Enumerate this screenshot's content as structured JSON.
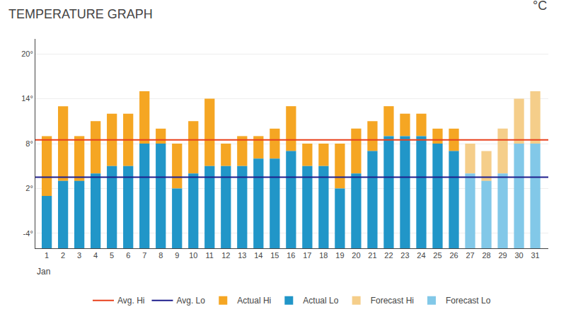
{
  "chart_data": {
    "type": "bar",
    "title": "TEMPERATURE GRAPH",
    "xlabel": "Jan",
    "ylabel": "°C",
    "x": [
      1,
      2,
      3,
      4,
      5,
      6,
      7,
      8,
      9,
      10,
      11,
      12,
      13,
      14,
      15,
      16,
      17,
      18,
      19,
      20,
      21,
      22,
      23,
      24,
      25,
      26,
      27,
      28,
      29,
      30,
      31
    ],
    "xlim": [
      0.3,
      31.8
    ],
    "xticks": [
      1,
      2,
      3,
      4,
      5,
      6,
      7,
      8,
      9,
      10,
      11,
      12,
      13,
      14,
      15,
      16,
      17,
      18,
      19,
      20,
      21,
      22,
      23,
      24,
      25,
      26,
      27,
      28,
      29,
      30,
      31
    ],
    "ylim": [
      -6,
      22
    ],
    "yticks": [
      {
        "value": -4,
        "label": "-4°"
      },
      {
        "value": 2,
        "label": "2°"
      },
      {
        "value": 8,
        "label": "8°"
      },
      {
        "value": 14,
        "label": "14°"
      },
      {
        "value": 20,
        "label": "20°"
      }
    ],
    "grid": "y",
    "legend": "bottom",
    "base": -6,
    "series": [
      {
        "name": "Avg. Hi",
        "type": "line",
        "color": "#E8401C",
        "value": 8.5
      },
      {
        "name": "Avg. Lo",
        "type": "line",
        "color": "#1E1E8C",
        "value": 3.5
      },
      {
        "name": "Actual Hi",
        "type": "bar",
        "color": "#F5A623",
        "base": "Actual Lo",
        "values": [
          9,
          13,
          9,
          11,
          12,
          12,
          15,
          10,
          8,
          11,
          14,
          8,
          9,
          9,
          10,
          13,
          8,
          8,
          8,
          10,
          11,
          13,
          12,
          12,
          10,
          10,
          null,
          null,
          null,
          null,
          null
        ]
      },
      {
        "name": "Actual Lo",
        "type": "bar",
        "color": "#2196C8",
        "values": [
          1,
          3,
          3,
          4,
          5,
          5,
          8,
          8,
          2,
          4,
          5,
          5,
          5,
          6,
          6,
          7,
          5,
          5,
          2,
          4,
          7,
          9,
          9,
          9,
          8,
          7,
          null,
          null,
          null,
          null,
          null
        ]
      },
      {
        "name": "Forecast Hi",
        "type": "bar",
        "color": "#F5CE8A",
        "base": "Forecast Lo",
        "values": [
          null,
          null,
          null,
          null,
          null,
          null,
          null,
          null,
          null,
          null,
          null,
          null,
          null,
          null,
          null,
          null,
          null,
          null,
          null,
          null,
          null,
          null,
          null,
          null,
          null,
          null,
          8,
          7,
          10,
          14,
          15
        ]
      },
      {
        "name": "Forecast Lo",
        "type": "bar",
        "color": "#82C8E8",
        "values": [
          null,
          null,
          null,
          null,
          null,
          null,
          null,
          null,
          null,
          null,
          null,
          null,
          null,
          null,
          null,
          null,
          null,
          null,
          null,
          null,
          null,
          null,
          null,
          null,
          null,
          null,
          4,
          3,
          4,
          8,
          8
        ]
      }
    ]
  }
}
